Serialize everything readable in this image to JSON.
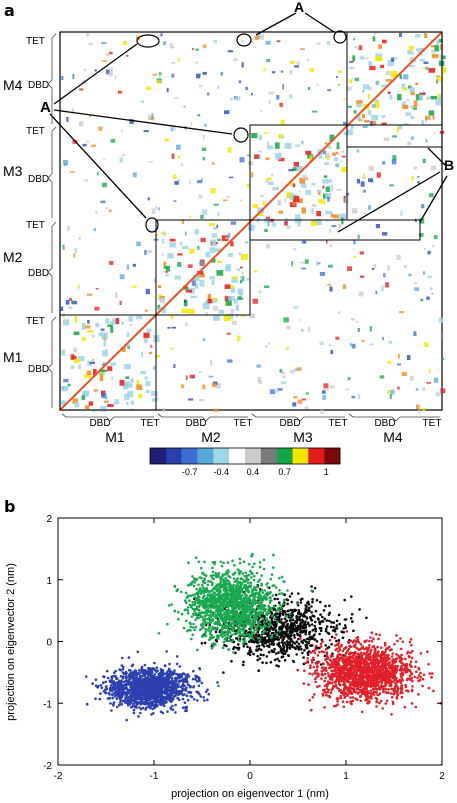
{
  "panel_a": {
    "letter": "a",
    "modules": [
      "M1",
      "M2",
      "M3",
      "M4"
    ],
    "domain_labels": {
      "tet": "TET",
      "dbd": "DBD"
    },
    "annotations": {
      "A": "A",
      "B": "B"
    },
    "colorbar": {
      "tick_labels": [
        "-0.7",
        "-0.4",
        "0.4",
        "0.7",
        "1"
      ],
      "colors": [
        "#1f1f7a",
        "#2a3fae",
        "#3c6fd0",
        "#5aa8d8",
        "#9fd3e6",
        "#ffffff",
        "#c9c9c9",
        "#7a7a7a",
        "#16a34a",
        "#f2e600",
        "#e21b1b",
        "#7a0a0a"
      ]
    }
  },
  "panel_b": {
    "letter": "b"
  },
  "chart_data": [
    {
      "type": "heatmap",
      "title": "",
      "row_labels_left": [
        "TET",
        "M4",
        "DBD",
        "TET",
        "M3",
        "DBD",
        "TET",
        "M2",
        "DBD",
        "TET",
        "M1",
        "DBD"
      ],
      "column_labels_bottom": [
        "DBD",
        "TET",
        "DBD",
        "TET",
        "DBD",
        "TET",
        "DBD",
        "TET"
      ],
      "module_labels_bottom": [
        "M1",
        "M2",
        "M3",
        "M4"
      ],
      "color_scale": {
        "ticks": [
          -0.7,
          -0.4,
          0.4,
          0.7,
          1
        ]
      }
    },
    {
      "type": "scatter",
      "xlabel": "projection on eigenvector 1 (nm)",
      "ylabel": "projection on eigenvector 2 (nm)",
      "xlim": [
        -2,
        2
      ],
      "ylim": [
        -2,
        2
      ],
      "xticks": [
        -2,
        -1,
        0,
        1,
        2
      ],
      "yticks": [
        -2,
        -1,
        0,
        1,
        2
      ],
      "clusters": [
        {
          "color": "#2c3fae",
          "center": [
            -1.05,
            -0.75
          ],
          "spread": [
            0.38,
            0.28
          ],
          "n": 1400
        },
        {
          "color": "#0a0a0a",
          "center": [
            0.3,
            0.2
          ],
          "spread": [
            0.55,
            0.45
          ],
          "n": 900
        },
        {
          "color": "#1aa84f",
          "center": [
            -0.2,
            0.6
          ],
          "spread": [
            0.4,
            0.5
          ],
          "n": 1400
        },
        {
          "color": "#e0202a",
          "center": [
            1.2,
            -0.5
          ],
          "spread": [
            0.45,
            0.4
          ],
          "n": 1500
        }
      ]
    }
  ]
}
